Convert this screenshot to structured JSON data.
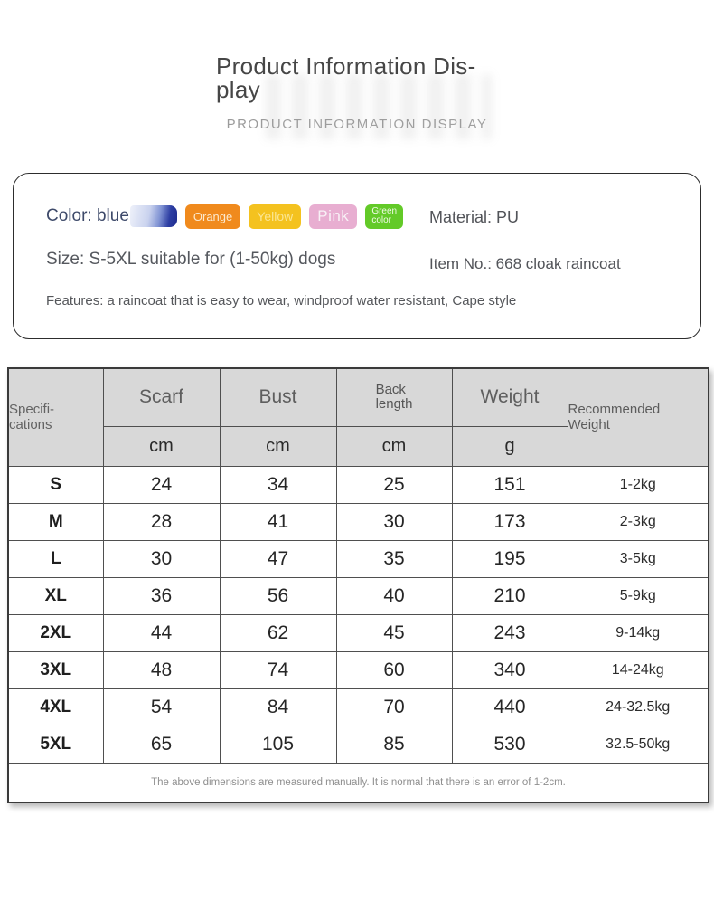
{
  "header": {
    "title": "Product Information Dis-\nplay",
    "subtitle": "PRODUCT INFORMATION DISPLAY"
  },
  "info_box": {
    "color_label": "Color: blue",
    "blue_swatch": {
      "name": "blue",
      "gradient": [
        "#eef1fa 0%",
        "#c9d2ee 40%",
        "#8194d4 62%",
        "#2c3da2 82%",
        "#1e2c8f 100%"
      ]
    },
    "badges": [
      {
        "label": "Orange",
        "bg": "#f08a1d",
        "text_color": "#fce9cd"
      },
      {
        "label": "Yellow",
        "bg": "#f4c21f",
        "text_color": "#fbe globally"
      },
      {
        "label": "Pink",
        "bg": "#e8aed1",
        "text_color": "#f8f1f6"
      },
      {
        "label": "Green\ncolor",
        "bg": "#63ca28",
        "text_color": "#f0fbe6"
      }
    ],
    "size_text": "Size: S-5XL suitable for (1-50kg) dogs",
    "material_text": "Material: PU",
    "item_no_text": "Item No.: 668 cloak raincoat",
    "features_text": "Features: a raincoat that is easy to wear, windproof water resistant, Cape style"
  },
  "size_table": {
    "headers": [
      {
        "label": "Specifi-\ncations"
      },
      {
        "label": "Scarf",
        "unit": "cm"
      },
      {
        "label": "Bust",
        "unit": "cm"
      },
      {
        "label": "Back\nlength",
        "unit": "cm"
      },
      {
        "label": "Weight",
        "unit": "g"
      },
      {
        "label": "Recommended\nWeight"
      }
    ],
    "rows": [
      {
        "size": "S",
        "scarf": "24",
        "bust": "34",
        "back_length": "25",
        "weight": "151",
        "recommended": "1-2kg"
      },
      {
        "size": "M",
        "scarf": "28",
        "bust": "41",
        "back_length": "30",
        "weight": "173",
        "recommended": "2-3kg"
      },
      {
        "size": "L",
        "scarf": "30",
        "bust": "47",
        "back_length": "35",
        "weight": "195",
        "recommended": "3-5kg"
      },
      {
        "size": "XL",
        "scarf": "36",
        "bust": "56",
        "back_length": "40",
        "weight": "210",
        "recommended": "5-9kg"
      },
      {
        "size": "2XL",
        "scarf": "44",
        "bust": "62",
        "back_length": "45",
        "weight": "243",
        "recommended": "9-14kg"
      },
      {
        "size": "3XL",
        "scarf": "48",
        "bust": "74",
        "back_length": "60",
        "weight": "340",
        "recommended": "14-24kg"
      },
      {
        "size": "4XL",
        "scarf": "54",
        "bust": "84",
        "back_length": "70",
        "weight": "440",
        "recommended": "24-32.5kg"
      },
      {
        "size": "5XL",
        "scarf": "65",
        "bust": "105",
        "back_length": "85",
        "weight": "530",
        "recommended": "32.5-50kg"
      }
    ],
    "footnote": "The above dimensions are measured manually. It is normal that there is an error of 1-2cm."
  }
}
